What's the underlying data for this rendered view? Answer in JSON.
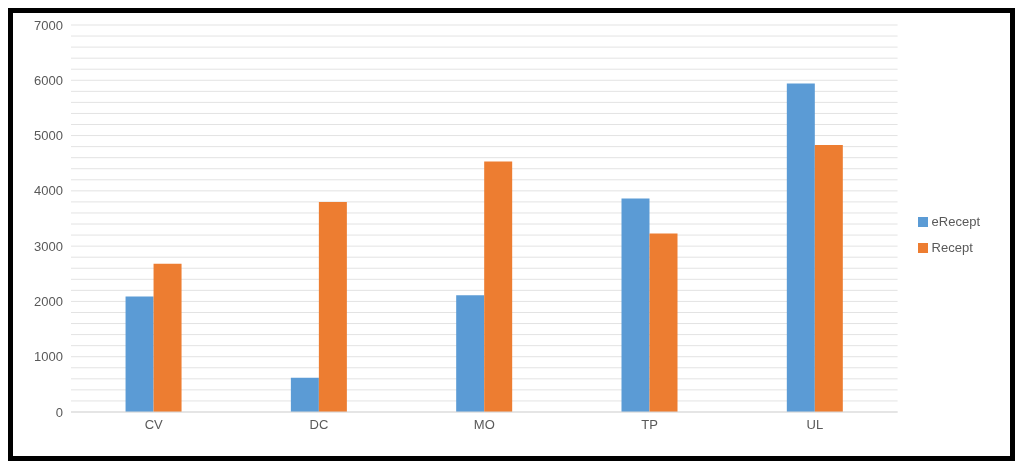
{
  "chart_data": {
    "type": "bar",
    "categories": [
      "CV",
      "DC",
      "MO",
      "TP",
      "UL"
    ],
    "series": [
      {
        "name": "eRecept",
        "color": "#5b9bd5",
        "values": [
          2090,
          620,
          2110,
          3860,
          5940
        ]
      },
      {
        "name": "Recept",
        "color": "#ed7d31",
        "values": [
          2680,
          3800,
          4530,
          3230,
          4830
        ]
      }
    ],
    "ylim": [
      0,
      7000
    ],
    "yticks": [
      0,
      {
        "value": 200,
        "label": null
      },
      {
        "value": 400,
        "label": null
      },
      {
        "value": 600,
        "label": null
      },
      {
        "value": 800,
        "label": null
      },
      1000,
      {
        "value": 1200,
        "label": null
      },
      {
        "value": 1400,
        "label": null
      },
      {
        "value": 1600,
        "label": null
      },
      {
        "value": 1800,
        "label": null
      },
      2000,
      {
        "value": 2200,
        "label": null
      },
      {
        "value": 2400,
        "label": null
      },
      {
        "value": 2600,
        "label": null
      },
      {
        "value": 2800,
        "label": null
      },
      3000,
      {
        "value": 3200,
        "label": null
      },
      {
        "value": 3400,
        "label": null
      },
      {
        "value": 3600,
        "label": null
      },
      {
        "value": 3800,
        "label": null
      },
      4000,
      {
        "value": 4200,
        "label": null
      },
      {
        "value": 4400,
        "label": null
      },
      {
        "value": 4600,
        "label": null
      },
      {
        "value": 4800,
        "label": null
      },
      5000,
      {
        "value": 5200,
        "label": null
      },
      {
        "value": 5400,
        "label": null
      },
      {
        "value": 5600,
        "label": null
      },
      {
        "value": 5800,
        "label": null
      },
      6000,
      {
        "value": 6200,
        "label": null
      },
      {
        "value": 6400,
        "label": null
      },
      {
        "value": 6600,
        "label": null
      },
      {
        "value": 6800,
        "label": null
      },
      7000
    ],
    "grid": "y",
    "legend": "right"
  }
}
